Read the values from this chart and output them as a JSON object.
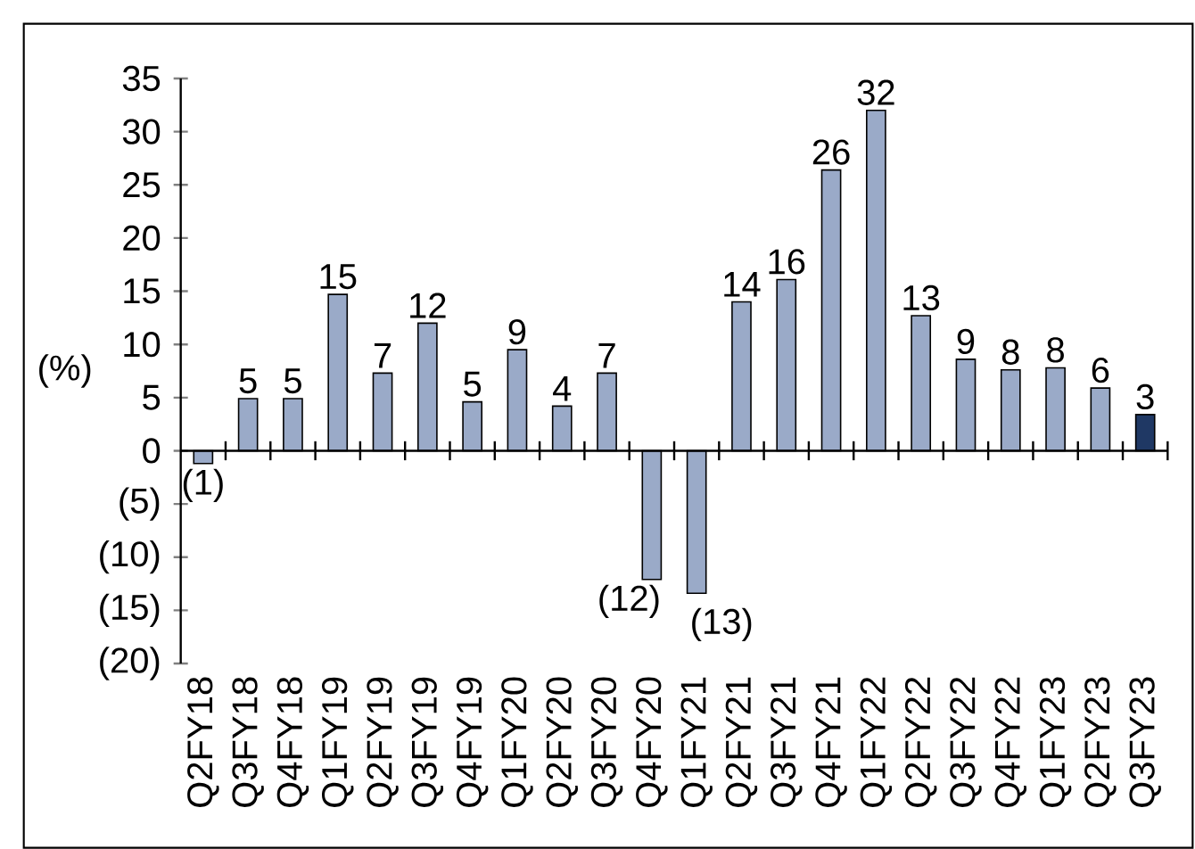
{
  "chart_data": {
    "type": "bar",
    "ylabel": "(%)",
    "categories": [
      "Q2FY18",
      "Q3FY18",
      "Q4FY18",
      "Q1FY19",
      "Q2FY19",
      "Q3FY19",
      "Q4FY19",
      "Q1FY20",
      "Q2FY20",
      "Q3FY20",
      "Q4FY20",
      "Q1FY21",
      "Q2FY21",
      "Q3FY21",
      "Q4FY21",
      "Q1FY22",
      "Q2FY22",
      "Q3FY22",
      "Q4FY22",
      "Q1FY23",
      "Q2FY23",
      "Q3FY23"
    ],
    "values": [
      -1.2,
      4.9,
      4.9,
      14.7,
      7.3,
      12.0,
      4.6,
      9.5,
      4.2,
      7.3,
      -12.1,
      -13.4,
      14.0,
      16.1,
      26.4,
      32.0,
      12.7,
      8.6,
      7.6,
      7.8,
      5.9,
      3.4
    ],
    "value_labels": [
      "(1)",
      "5",
      "5",
      "15",
      "7",
      "12",
      "5",
      "9",
      "4",
      "7",
      "(12)",
      "(13)",
      "14",
      "16",
      "26",
      "32",
      "13",
      "9",
      "8",
      "8",
      "6",
      "3"
    ],
    "colors": [
      "#9aaac8",
      "#9aaac8",
      "#9aaac8",
      "#9aaac8",
      "#9aaac8",
      "#9aaac8",
      "#9aaac8",
      "#9aaac8",
      "#9aaac8",
      "#9aaac8",
      "#9aaac8",
      "#9aaac8",
      "#9aaac8",
      "#9aaac8",
      "#9aaac8",
      "#9aaac8",
      "#9aaac8",
      "#9aaac8",
      "#9aaac8",
      "#9aaac8",
      "#9aaac8",
      "#1f3864"
    ],
    "ylim": [
      -20,
      35
    ],
    "yticks": [
      {
        "value": -20,
        "label": "(20)"
      },
      {
        "value": -15,
        "label": "(15)"
      },
      {
        "value": -10,
        "label": "(10)"
      },
      {
        "value": -5,
        "label": "(5)"
      },
      0,
      5,
      10,
      15,
      20,
      25,
      30,
      35
    ],
    "legend": false
  }
}
